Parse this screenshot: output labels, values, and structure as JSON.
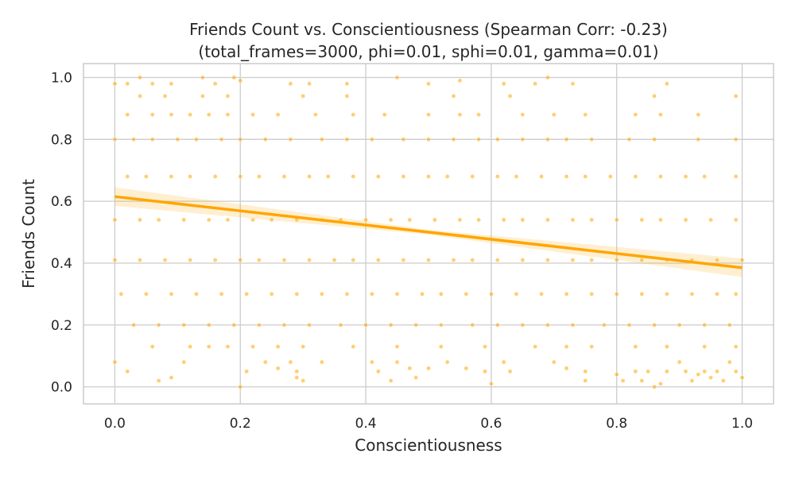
{
  "chart_data": {
    "type": "scatter",
    "title": "Friends Count vs. Conscientiousness (Spearman Corr: -0.23)",
    "subtitle": "(total_frames=3000, phi=0.01, sphi=0.01, gamma=0.01)",
    "xlabel": "Conscientiousness",
    "ylabel": "Friends Count",
    "xlim": [
      -0.05,
      1.05
    ],
    "ylim": [
      -0.055,
      1.045
    ],
    "xticks": [
      0.0,
      0.2,
      0.4,
      0.6,
      0.8,
      1.0
    ],
    "yticks": [
      0.0,
      0.2,
      0.4,
      0.6,
      0.8,
      1.0
    ],
    "xtick_labels": [
      "0.0",
      "0.2",
      "0.4",
      "0.6",
      "0.8",
      "1.0"
    ],
    "ytick_labels": [
      "0.0",
      "0.2",
      "0.4",
      "0.6",
      "0.8",
      "1.0"
    ],
    "grid": true,
    "point_color": "#ffa500",
    "points": [
      [
        0.0,
        0.98
      ],
      [
        0.02,
        0.98
      ],
      [
        0.04,
        1.0
      ],
      [
        0.06,
        0.98
      ],
      [
        0.09,
        0.98
      ],
      [
        0.14,
        1.0
      ],
      [
        0.16,
        0.98
      ],
      [
        0.19,
        1.0
      ],
      [
        0.2,
        0.99
      ],
      [
        0.28,
        0.98
      ],
      [
        0.31,
        0.98
      ],
      [
        0.37,
        0.98
      ],
      [
        0.45,
        1.0
      ],
      [
        0.5,
        0.98
      ],
      [
        0.55,
        0.99
      ],
      [
        0.62,
        0.98
      ],
      [
        0.67,
        0.98
      ],
      [
        0.69,
        1.0
      ],
      [
        0.73,
        0.98
      ],
      [
        0.88,
        0.98
      ],
      [
        0.02,
        0.88
      ],
      [
        0.06,
        0.88
      ],
      [
        0.09,
        0.88
      ],
      [
        0.12,
        0.88
      ],
      [
        0.15,
        0.88
      ],
      [
        0.18,
        0.88
      ],
      [
        0.22,
        0.88
      ],
      [
        0.26,
        0.88
      ],
      [
        0.32,
        0.88
      ],
      [
        0.38,
        0.88
      ],
      [
        0.43,
        0.88
      ],
      [
        0.5,
        0.88
      ],
      [
        0.55,
        0.88
      ],
      [
        0.58,
        0.88
      ],
      [
        0.65,
        0.88
      ],
      [
        0.7,
        0.88
      ],
      [
        0.75,
        0.88
      ],
      [
        0.83,
        0.88
      ],
      [
        0.87,
        0.88
      ],
      [
        0.93,
        0.88
      ],
      [
        0.04,
        0.94
      ],
      [
        0.08,
        0.94
      ],
      [
        0.14,
        0.94
      ],
      [
        0.18,
        0.94
      ],
      [
        0.3,
        0.94
      ],
      [
        0.37,
        0.94
      ],
      [
        0.54,
        0.94
      ],
      [
        0.63,
        0.94
      ],
      [
        0.86,
        0.94
      ],
      [
        0.99,
        0.94
      ],
      [
        0.0,
        0.8
      ],
      [
        0.03,
        0.8
      ],
      [
        0.06,
        0.8
      ],
      [
        0.1,
        0.8
      ],
      [
        0.13,
        0.8
      ],
      [
        0.17,
        0.8
      ],
      [
        0.2,
        0.8
      ],
      [
        0.24,
        0.8
      ],
      [
        0.28,
        0.8
      ],
      [
        0.33,
        0.8
      ],
      [
        0.37,
        0.8
      ],
      [
        0.41,
        0.8
      ],
      [
        0.46,
        0.8
      ],
      [
        0.5,
        0.8
      ],
      [
        0.54,
        0.8
      ],
      [
        0.58,
        0.8
      ],
      [
        0.61,
        0.8
      ],
      [
        0.65,
        0.8
      ],
      [
        0.69,
        0.8
      ],
      [
        0.72,
        0.8
      ],
      [
        0.76,
        0.8
      ],
      [
        0.82,
        0.8
      ],
      [
        0.86,
        0.8
      ],
      [
        0.93,
        0.8
      ],
      [
        0.99,
        0.8
      ],
      [
        0.02,
        0.68
      ],
      [
        0.05,
        0.68
      ],
      [
        0.09,
        0.68
      ],
      [
        0.12,
        0.68
      ],
      [
        0.16,
        0.68
      ],
      [
        0.2,
        0.68
      ],
      [
        0.23,
        0.68
      ],
      [
        0.27,
        0.68
      ],
      [
        0.31,
        0.68
      ],
      [
        0.34,
        0.68
      ],
      [
        0.38,
        0.68
      ],
      [
        0.42,
        0.68
      ],
      [
        0.46,
        0.68
      ],
      [
        0.5,
        0.68
      ],
      [
        0.53,
        0.68
      ],
      [
        0.57,
        0.68
      ],
      [
        0.61,
        0.68
      ],
      [
        0.64,
        0.68
      ],
      [
        0.68,
        0.68
      ],
      [
        0.72,
        0.68
      ],
      [
        0.75,
        0.68
      ],
      [
        0.79,
        0.68
      ],
      [
        0.83,
        0.68
      ],
      [
        0.87,
        0.68
      ],
      [
        0.91,
        0.68
      ],
      [
        0.94,
        0.68
      ],
      [
        0.99,
        0.68
      ],
      [
        0.0,
        0.54
      ],
      [
        0.04,
        0.54
      ],
      [
        0.07,
        0.54
      ],
      [
        0.11,
        0.54
      ],
      [
        0.15,
        0.54
      ],
      [
        0.18,
        0.54
      ],
      [
        0.22,
        0.54
      ],
      [
        0.25,
        0.54
      ],
      [
        0.29,
        0.54
      ],
      [
        0.33,
        0.54
      ],
      [
        0.36,
        0.54
      ],
      [
        0.4,
        0.54
      ],
      [
        0.44,
        0.54
      ],
      [
        0.47,
        0.54
      ],
      [
        0.51,
        0.54
      ],
      [
        0.55,
        0.54
      ],
      [
        0.58,
        0.54
      ],
      [
        0.62,
        0.54
      ],
      [
        0.65,
        0.54
      ],
      [
        0.69,
        0.54
      ],
      [
        0.73,
        0.54
      ],
      [
        0.76,
        0.54
      ],
      [
        0.8,
        0.54
      ],
      [
        0.84,
        0.54
      ],
      [
        0.87,
        0.54
      ],
      [
        0.91,
        0.54
      ],
      [
        0.95,
        0.54
      ],
      [
        0.99,
        0.54
      ],
      [
        0.0,
        0.41
      ],
      [
        0.04,
        0.41
      ],
      [
        0.08,
        0.41
      ],
      [
        0.12,
        0.41
      ],
      [
        0.16,
        0.41
      ],
      [
        0.2,
        0.41
      ],
      [
        0.23,
        0.41
      ],
      [
        0.27,
        0.41
      ],
      [
        0.31,
        0.41
      ],
      [
        0.35,
        0.41
      ],
      [
        0.38,
        0.41
      ],
      [
        0.42,
        0.41
      ],
      [
        0.46,
        0.41
      ],
      [
        0.5,
        0.41
      ],
      [
        0.54,
        0.41
      ],
      [
        0.57,
        0.41
      ],
      [
        0.61,
        0.41
      ],
      [
        0.65,
        0.41
      ],
      [
        0.69,
        0.41
      ],
      [
        0.73,
        0.41
      ],
      [
        0.76,
        0.41
      ],
      [
        0.8,
        0.41
      ],
      [
        0.84,
        0.41
      ],
      [
        0.88,
        0.41
      ],
      [
        0.92,
        0.41
      ],
      [
        0.96,
        0.41
      ],
      [
        1.0,
        0.41
      ],
      [
        0.01,
        0.3
      ],
      [
        0.05,
        0.3
      ],
      [
        0.09,
        0.3
      ],
      [
        0.13,
        0.3
      ],
      [
        0.17,
        0.3
      ],
      [
        0.21,
        0.3
      ],
      [
        0.25,
        0.3
      ],
      [
        0.29,
        0.3
      ],
      [
        0.33,
        0.3
      ],
      [
        0.37,
        0.3
      ],
      [
        0.41,
        0.3
      ],
      [
        0.45,
        0.3
      ],
      [
        0.49,
        0.3
      ],
      [
        0.52,
        0.3
      ],
      [
        0.56,
        0.3
      ],
      [
        0.6,
        0.3
      ],
      [
        0.64,
        0.3
      ],
      [
        0.68,
        0.3
      ],
      [
        0.72,
        0.3
      ],
      [
        0.76,
        0.3
      ],
      [
        0.8,
        0.3
      ],
      [
        0.84,
        0.3
      ],
      [
        0.88,
        0.3
      ],
      [
        0.92,
        0.3
      ],
      [
        0.96,
        0.3
      ],
      [
        0.99,
        0.3
      ],
      [
        0.03,
        0.2
      ],
      [
        0.07,
        0.2
      ],
      [
        0.11,
        0.2
      ],
      [
        0.15,
        0.2
      ],
      [
        0.19,
        0.2
      ],
      [
        0.23,
        0.2
      ],
      [
        0.27,
        0.2
      ],
      [
        0.31,
        0.2
      ],
      [
        0.36,
        0.2
      ],
      [
        0.4,
        0.2
      ],
      [
        0.44,
        0.2
      ],
      [
        0.48,
        0.2
      ],
      [
        0.52,
        0.2
      ],
      [
        0.57,
        0.2
      ],
      [
        0.61,
        0.2
      ],
      [
        0.65,
        0.2
      ],
      [
        0.69,
        0.2
      ],
      [
        0.73,
        0.2
      ],
      [
        0.78,
        0.2
      ],
      [
        0.82,
        0.2
      ],
      [
        0.86,
        0.2
      ],
      [
        0.9,
        0.2
      ],
      [
        0.94,
        0.2
      ],
      [
        0.98,
        0.2
      ],
      [
        0.06,
        0.13
      ],
      [
        0.12,
        0.13
      ],
      [
        0.15,
        0.13
      ],
      [
        0.18,
        0.13
      ],
      [
        0.22,
        0.13
      ],
      [
        0.26,
        0.13
      ],
      [
        0.3,
        0.13
      ],
      [
        0.38,
        0.13
      ],
      [
        0.45,
        0.13
      ],
      [
        0.52,
        0.13
      ],
      [
        0.59,
        0.13
      ],
      [
        0.67,
        0.13
      ],
      [
        0.72,
        0.13
      ],
      [
        0.76,
        0.13
      ],
      [
        0.83,
        0.13
      ],
      [
        0.88,
        0.13
      ],
      [
        0.94,
        0.13
      ],
      [
        0.99,
        0.13
      ],
      [
        0.0,
        0.08
      ],
      [
        0.02,
        0.05
      ],
      [
        0.07,
        0.02
      ],
      [
        0.09,
        0.03
      ],
      [
        0.11,
        0.08
      ],
      [
        0.21,
        0.05
      ],
      [
        0.24,
        0.08
      ],
      [
        0.26,
        0.06
      ],
      [
        0.28,
        0.08
      ],
      [
        0.29,
        0.05
      ],
      [
        0.29,
        0.03
      ],
      [
        0.3,
        0.02
      ],
      [
        0.33,
        0.08
      ],
      [
        0.41,
        0.08
      ],
      [
        0.42,
        0.05
      ],
      [
        0.44,
        0.02
      ],
      [
        0.45,
        0.08
      ],
      [
        0.47,
        0.06
      ],
      [
        0.48,
        0.03
      ],
      [
        0.5,
        0.06
      ],
      [
        0.53,
        0.08
      ],
      [
        0.56,
        0.06
      ],
      [
        0.59,
        0.05
      ],
      [
        0.6,
        0.01
      ],
      [
        0.62,
        0.08
      ],
      [
        0.63,
        0.05
      ],
      [
        0.7,
        0.08
      ],
      [
        0.72,
        0.06
      ],
      [
        0.75,
        0.05
      ],
      [
        0.75,
        0.02
      ],
      [
        0.8,
        0.04
      ],
      [
        0.81,
        0.02
      ],
      [
        0.83,
        0.05
      ],
      [
        0.84,
        0.02
      ],
      [
        0.85,
        0.05
      ],
      [
        0.86,
        0.0
      ],
      [
        0.88,
        0.05
      ],
      [
        0.9,
        0.08
      ],
      [
        0.91,
        0.05
      ],
      [
        0.92,
        0.02
      ],
      [
        0.93,
        0.04
      ],
      [
        0.94,
        0.05
      ],
      [
        0.95,
        0.03
      ],
      [
        0.96,
        0.05
      ],
      [
        0.97,
        0.02
      ],
      [
        0.98,
        0.08
      ],
      [
        0.99,
        0.05
      ],
      [
        1.0,
        0.03
      ],
      [
        0.2,
        0.0
      ],
      [
        0.87,
        0.01
      ]
    ],
    "regression": {
      "color": "#ffa500",
      "line": [
        [
          0.0,
          0.615
        ],
        [
          1.0,
          0.385
        ]
      ],
      "ci_upper": [
        [
          0.0,
          0.645
        ],
        [
          0.5,
          0.508
        ],
        [
          1.0,
          0.415
        ]
      ],
      "ci_lower": [
        [
          0.0,
          0.585
        ],
        [
          0.5,
          0.492
        ],
        [
          1.0,
          0.355
        ]
      ]
    }
  }
}
